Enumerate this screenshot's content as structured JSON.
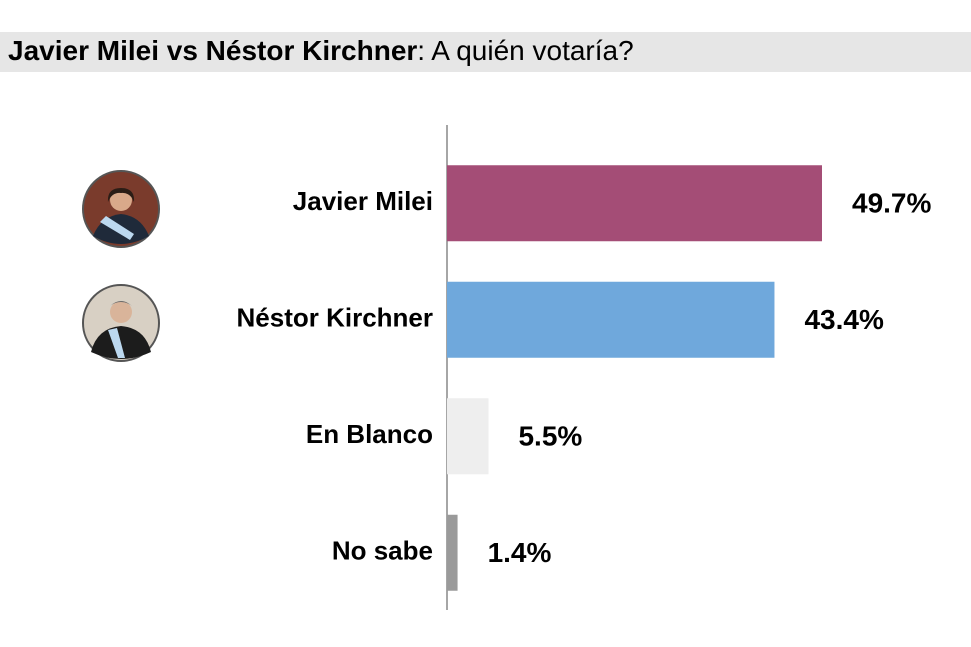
{
  "chart_data": {
    "type": "bar",
    "orientation": "horizontal",
    "title": [
      "Javier Milei vs Néstor Kirchner",
      ": A quién votaría?"
    ],
    "categories": [
      "Javier Milei",
      "Néstor Kirchner",
      "En Blanco",
      "No sabe"
    ],
    "values": [
      49.7,
      43.4,
      5.5,
      1.4
    ],
    "value_labels": [
      "49.7%",
      "43.4%",
      "5.5%",
      "1.4%"
    ],
    "colors": [
      "#a44d76",
      "#6fa8dc",
      "#eeeeee",
      "#9a9a9a"
    ]
  }
}
